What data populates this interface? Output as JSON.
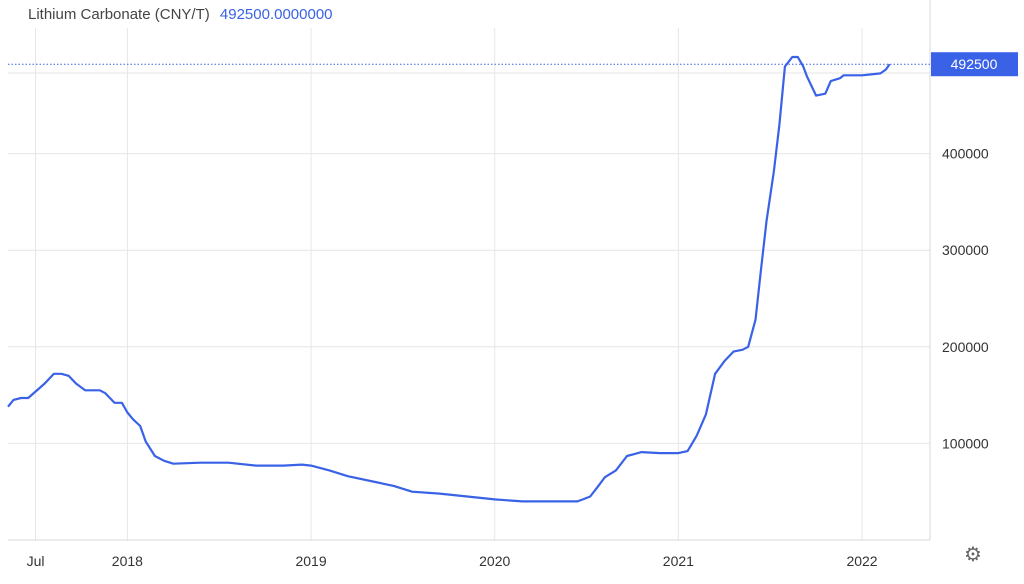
{
  "header": {
    "title": "Lithium Carbonate (CNY/T)",
    "last_value": "492500.0000000"
  },
  "colors": {
    "line": "#3a62e6",
    "grid": "#e6e6e6",
    "axis_text": "#333333",
    "title": "#444444"
  },
  "chart_data": {
    "type": "line",
    "title": "Lithium Carbonate (CNY/T)",
    "xlabel": "",
    "ylabel": "",
    "x_range": [
      2017.35,
      2022.37
    ],
    "ylim": [
      0,
      530000
    ],
    "y_ticks": [
      100000,
      200000,
      300000,
      400000
    ],
    "y_tick_labels": [
      "100000",
      "200000",
      "300000",
      "400000"
    ],
    "x_ticks": [
      2017.5,
      2018.0,
      2019.0,
      2020.0,
      2021.0,
      2022.0
    ],
    "x_tick_labels": [
      "Jul",
      "2018",
      "2019",
      "2020",
      "2021",
      "2022"
    ],
    "last_price_label": "492500",
    "last_price": 492500,
    "grid": true,
    "series": [
      {
        "x": [
          2017.35,
          2017.38,
          2017.42,
          2017.46,
          2017.55,
          2017.6,
          2017.64,
          2017.68,
          2017.72,
          2017.77,
          2017.8,
          2017.85,
          2017.88,
          2017.93,
          2017.97,
          2018.0,
          2018.03,
          2018.07,
          2018.1,
          2018.15,
          2018.2,
          2018.25,
          2018.4,
          2018.55,
          2018.7,
          2018.85,
          2018.95,
          2019.0,
          2019.1,
          2019.2,
          2019.35,
          2019.45,
          2019.55,
          2019.7,
          2019.85,
          2020.0,
          2020.15,
          2020.3,
          2020.45,
          2020.48,
          2020.52,
          2020.56,
          2020.6,
          2020.66,
          2020.72,
          2020.8,
          2020.9,
          2021.0,
          2021.05,
          2021.1,
          2021.15,
          2021.2,
          2021.25,
          2021.3,
          2021.35,
          2021.38,
          2021.42,
          2021.45,
          2021.48,
          2021.52,
          2021.55,
          2021.58,
          2021.62,
          2021.65,
          2021.68,
          2021.7,
          2021.75,
          2021.8,
          2021.83,
          2021.88,
          2021.9,
          2021.95,
          2022.0,
          2022.05,
          2022.1,
          2022.13,
          2022.15
        ],
        "values": [
          138000,
          145000,
          147000,
          147000,
          162000,
          172000,
          172000,
          170000,
          162000,
          155000,
          155000,
          155000,
          152000,
          142000,
          142000,
          132000,
          125000,
          118000,
          102000,
          87000,
          82000,
          79000,
          80000,
          80000,
          77000,
          77000,
          78000,
          77000,
          72000,
          66000,
          60000,
          56000,
          50000,
          48000,
          45000,
          42000,
          40000,
          40000,
          40000,
          42000,
          45000,
          55000,
          65000,
          72000,
          87000,
          91000,
          90000,
          90000,
          92000,
          108000,
          130000,
          172000,
          185000,
          195000,
          197000,
          200000,
          228000,
          280000,
          330000,
          382000,
          430000,
          490000,
          500000,
          500000,
          490000,
          480000,
          460000,
          462000,
          475000,
          478000,
          481000,
          481000,
          481000,
          482000,
          483000,
          487000,
          492500
        ]
      }
    ]
  }
}
